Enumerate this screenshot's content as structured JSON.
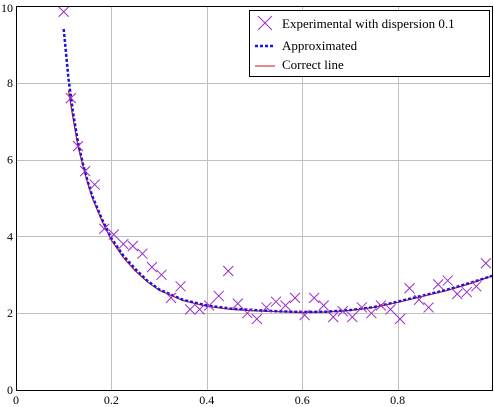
{
  "chart_data": {
    "type": "scatter",
    "title": "",
    "xlabel": "",
    "ylabel": "",
    "xlim": [
      0,
      1
    ],
    "ylim": [
      0,
      10
    ],
    "x_ticks": [
      0,
      0.2,
      0.4,
      0.6,
      0.8
    ],
    "x_tick_labels": [
      "0",
      "0.2",
      "0.4",
      "0.6",
      "0.8"
    ],
    "y_ticks": [
      0,
      2,
      4,
      6,
      8,
      10
    ],
    "y_tick_labels": [
      "0",
      "2",
      "4",
      "6",
      "8",
      "10"
    ],
    "grid": true,
    "legend_position": "top-right",
    "series": [
      {
        "name": "Experimental with dispersion 0.1",
        "kind": "scatter",
        "marker": "x",
        "color": "#9b30c8",
        "x": [
          0.1,
          0.115,
          0.13,
          0.145,
          0.165,
          0.185,
          0.205,
          0.225,
          0.245,
          0.265,
          0.285,
          0.305,
          0.325,
          0.345,
          0.365,
          0.385,
          0.405,
          0.425,
          0.445,
          0.465,
          0.485,
          0.505,
          0.525,
          0.545,
          0.565,
          0.585,
          0.605,
          0.625,
          0.645,
          0.665,
          0.685,
          0.705,
          0.725,
          0.745,
          0.765,
          0.785,
          0.805,
          0.825,
          0.845,
          0.865,
          0.885,
          0.905,
          0.925,
          0.945,
          0.965,
          0.985
        ],
        "y": [
          9.85,
          7.6,
          6.35,
          5.7,
          5.35,
          4.2,
          4.05,
          3.8,
          3.75,
          3.55,
          3.2,
          3.0,
          2.4,
          2.7,
          2.1,
          2.1,
          2.2,
          2.45,
          3.1,
          2.25,
          2.0,
          1.85,
          2.15,
          2.3,
          2.2,
          2.4,
          1.95,
          2.4,
          2.2,
          1.9,
          2.05,
          1.9,
          2.15,
          2.0,
          2.2,
          2.1,
          1.85,
          2.65,
          2.35,
          2.15,
          2.75,
          2.85,
          2.5,
          2.55,
          2.7,
          3.3
        ]
      },
      {
        "name": "Approximated",
        "kind": "line",
        "style": "dotted",
        "color": "#1515e0",
        "x": [
          0.1,
          0.11,
          0.12,
          0.13,
          0.14,
          0.15,
          0.16,
          0.18,
          0.2,
          0.225,
          0.25,
          0.275,
          0.3,
          0.35,
          0.4,
          0.45,
          0.5,
          0.55,
          0.6,
          0.65,
          0.7,
          0.75,
          0.8,
          0.85,
          0.9,
          0.95,
          1.0
        ],
        "y": [
          9.4,
          8.1,
          7.2,
          6.45,
          5.9,
          5.45,
          5.05,
          4.45,
          3.95,
          3.5,
          3.15,
          2.85,
          2.62,
          2.35,
          2.2,
          2.12,
          2.08,
          2.05,
          2.03,
          2.04,
          2.08,
          2.16,
          2.3,
          2.45,
          2.6,
          2.78,
          2.98
        ]
      },
      {
        "name": "Correct line",
        "kind": "line",
        "style": "solid",
        "color": "#d01010",
        "x": [
          0.11,
          0.12,
          0.13,
          0.14,
          0.15,
          0.16,
          0.18,
          0.2,
          0.225,
          0.25,
          0.275,
          0.3,
          0.35,
          0.4,
          0.45,
          0.5,
          0.55,
          0.6,
          0.65,
          0.7,
          0.75,
          0.8,
          0.85,
          0.9,
          0.95,
          1.0
        ],
        "y": [
          7.8,
          7.05,
          6.35,
          5.85,
          5.4,
          5.0,
          4.4,
          3.9,
          3.45,
          3.1,
          2.82,
          2.6,
          2.33,
          2.18,
          2.1,
          2.06,
          2.04,
          2.02,
          2.03,
          2.07,
          2.15,
          2.28,
          2.43,
          2.58,
          2.76,
          2.98
        ]
      }
    ]
  }
}
